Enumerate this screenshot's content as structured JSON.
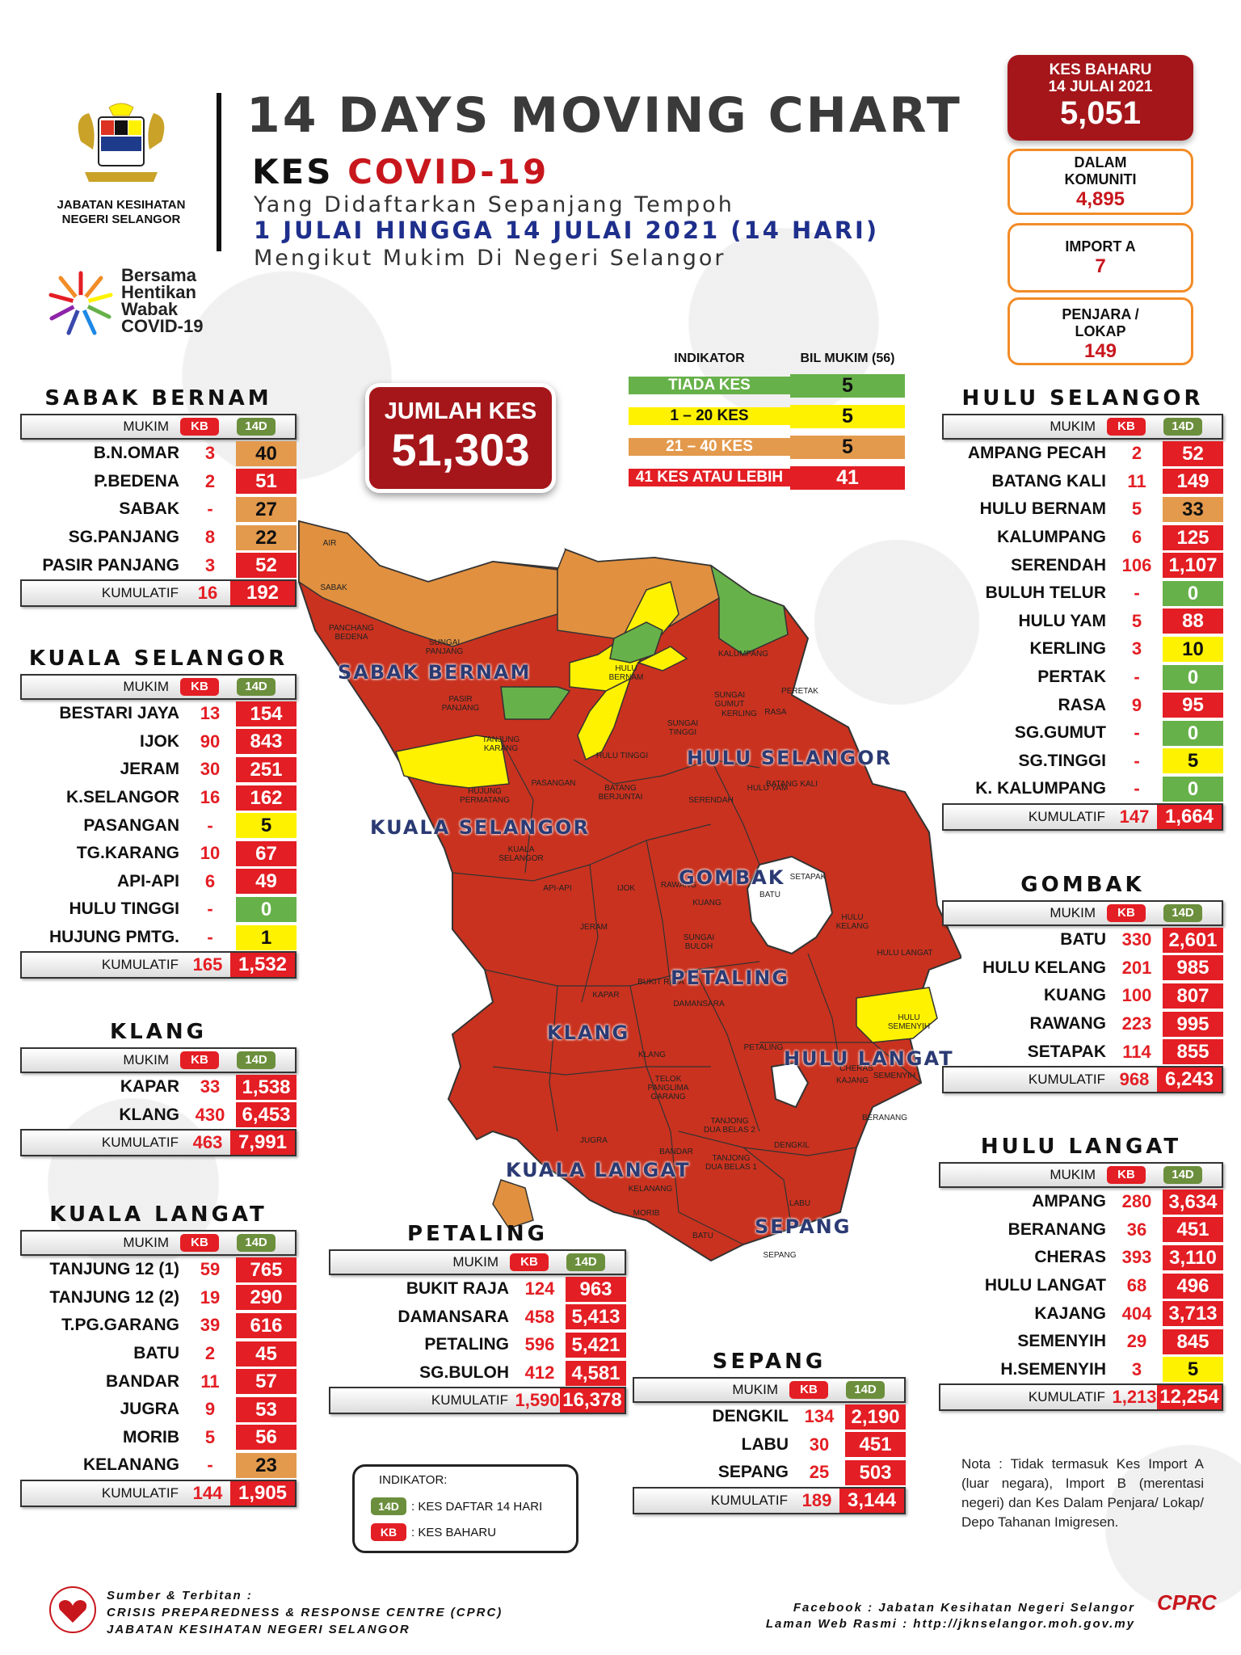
{
  "header": {
    "title": "14 DAYS MOVING CHART",
    "kes": "KES ",
    "covid": "COVID-19",
    "line1": "Yang Didaftarkan Sepanjang Tempoh",
    "line2": "1 JULAI HINGGA 14 JULAI 2021 (14 HARI)",
    "line3": "Mengikut Mukim Di Negeri Selangor",
    "org": "JABATAN KESIHATAN NEGERI SELANGOR",
    "campaign": "Bersama Hentikan Wabak COVID-19"
  },
  "kes_baharu": {
    "label": "KES BAHARU",
    "date": "14 JULAI 2021",
    "value": "5,051"
  },
  "stats": [
    {
      "label": "DALAM KOMUNITI",
      "value": "4,895"
    },
    {
      "label": "IMPORT A",
      "value": "7"
    },
    {
      "label": "PENJARA / LOKAP",
      "value": "149"
    }
  ],
  "jumlah": {
    "label": "JUMLAH KES",
    "value": "51,303"
  },
  "indicator": {
    "h1": "INDIKATOR",
    "h2": "BIL MUKIM (56)",
    "rows": [
      {
        "label": "TIADA KES",
        "count": "5",
        "color": "#67b14a"
      },
      {
        "label": "1 – 20 KES",
        "count": "5",
        "color": "#fff200"
      },
      {
        "label": "21 – 40 KES",
        "count": "5",
        "color": "#e39a4d"
      },
      {
        "label": "41 KES ATAU LEBIH",
        "count": "41",
        "color": "#e31e24"
      }
    ]
  },
  "col": {
    "mukim": "MUKIM",
    "kb": "KB",
    "d14": "14D",
    "kumulatif": "KUMULATIF"
  },
  "tables": {
    "sabak": {
      "name": "SABAK BERNAM",
      "rows": [
        [
          "B.N.OMAR",
          "3",
          "40",
          "org2"
        ],
        [
          "P.BEDENA",
          "2",
          "51",
          "red"
        ],
        [
          "SABAK",
          "-",
          "27",
          "org2"
        ],
        [
          "SG.PANJANG",
          "8",
          "22",
          "org2"
        ],
        [
          "PASIR PANJANG",
          "3",
          "52",
          "red"
        ]
      ],
      "kb": "16",
      "d14": "192"
    },
    "kualasel": {
      "name": "KUALA SELANGOR",
      "rows": [
        [
          "BESTARI JAYA",
          "13",
          "154",
          "red"
        ],
        [
          "IJOK",
          "90",
          "843",
          "red"
        ],
        [
          "JERAM",
          "30",
          "251",
          "red"
        ],
        [
          "K.SELANGOR",
          "16",
          "162",
          "red"
        ],
        [
          "PASANGAN",
          "-",
          "5",
          "yel"
        ],
        [
          "TG.KARANG",
          "10",
          "67",
          "red"
        ],
        [
          "API-API",
          "6",
          "49",
          "red"
        ],
        [
          "HULU TINGGI",
          "-",
          "0",
          "grn"
        ],
        [
          "HUJUNG PMTG.",
          "-",
          "1",
          "yel"
        ]
      ],
      "kb": "165",
      "d14": "1,532"
    },
    "klang": {
      "name": "KLANG",
      "rows": [
        [
          "KAPAR",
          "33",
          "1,538",
          "red"
        ],
        [
          "KLANG",
          "430",
          "6,453",
          "red"
        ]
      ],
      "kb": "463",
      "d14": "7,991"
    },
    "kualalangat": {
      "name": "KUALA LANGAT",
      "rows": [
        [
          "TANJUNG 12 (1)",
          "59",
          "765",
          "red"
        ],
        [
          "TANJUNG 12 (2)",
          "19",
          "290",
          "red"
        ],
        [
          "T.PG.GARANG",
          "39",
          "616",
          "red"
        ],
        [
          "BATU",
          "2",
          "45",
          "red"
        ],
        [
          "BANDAR",
          "11",
          "57",
          "red"
        ],
        [
          "JUGRA",
          "9",
          "53",
          "red"
        ],
        [
          "MORIB",
          "5",
          "56",
          "red"
        ],
        [
          "KELANANG",
          "-",
          "23",
          "org2"
        ]
      ],
      "kb": "144",
      "d14": "1,905"
    },
    "petaling": {
      "name": "PETALING",
      "rows": [
        [
          "BUKIT RAJA",
          "124",
          "963",
          "red"
        ],
        [
          "DAMANSARA",
          "458",
          "5,413",
          "red"
        ],
        [
          "PETALING",
          "596",
          "5,421",
          "red"
        ],
        [
          "SG.BULOH",
          "412",
          "4,581",
          "red"
        ]
      ],
      "kb": "1,590",
      "d14": "16,378"
    },
    "sepang": {
      "name": "SEPANG",
      "rows": [
        [
          "DENGKIL",
          "134",
          "2,190",
          "red"
        ],
        [
          "LABU",
          "30",
          "451",
          "red"
        ],
        [
          "SEPANG",
          "25",
          "503",
          "red"
        ]
      ],
      "kb": "189",
      "d14": "3,144"
    },
    "hulusel": {
      "name": "HULU SELANGOR",
      "rows": [
        [
          "AMPANG PECAH",
          "2",
          "52",
          "red"
        ],
        [
          "BATANG KALI",
          "11",
          "149",
          "red"
        ],
        [
          "HULU BERNAM",
          "5",
          "33",
          "org2"
        ],
        [
          "KALUMPANG",
          "6",
          "125",
          "red"
        ],
        [
          "SERENDAH",
          "106",
          "1,107",
          "red"
        ],
        [
          "BULUH TELUR",
          "-",
          "0",
          "grn"
        ],
        [
          "HULU YAM",
          "5",
          "88",
          "red"
        ],
        [
          "KERLING",
          "3",
          "10",
          "yel"
        ],
        [
          "PERTAK",
          "-",
          "0",
          "grn"
        ],
        [
          "RASA",
          "9",
          "95",
          "red"
        ],
        [
          "SG.GUMUT",
          "-",
          "0",
          "grn"
        ],
        [
          "SG.TINGGI",
          "-",
          "5",
          "yel"
        ],
        [
          "K. KALUMPANG",
          "-",
          "0",
          "grn"
        ]
      ],
      "kb": "147",
      "d14": "1,664"
    },
    "gombak": {
      "name": "GOMBAK",
      "rows": [
        [
          "BATU",
          "330",
          "2,601",
          "red"
        ],
        [
          "HULU KELANG",
          "201",
          "985",
          "red"
        ],
        [
          "KUANG",
          "100",
          "807",
          "red"
        ],
        [
          "RAWANG",
          "223",
          "995",
          "red"
        ],
        [
          "SETAPAK",
          "114",
          "855",
          "red"
        ]
      ],
      "kb": "968",
      "d14": "6,243"
    },
    "hululangat": {
      "name": "HULU LANGAT",
      "rows": [
        [
          "AMPANG",
          "280",
          "3,634",
          "red"
        ],
        [
          "BERANANG",
          "36",
          "451",
          "red"
        ],
        [
          "CHERAS",
          "393",
          "3,110",
          "red"
        ],
        [
          "HULU LANGAT",
          "68",
          "496",
          "red"
        ],
        [
          "KAJANG",
          "404",
          "3,713",
          "red"
        ],
        [
          "SEMENYIH",
          "29",
          "845",
          "red"
        ],
        [
          "H.SEMENYIH",
          "3",
          "5",
          "yel"
        ]
      ],
      "kb": "1,213",
      "d14": "12,254"
    }
  },
  "map_labels": {
    "sabak": "SABAK BERNAM",
    "hulusel": "HULU SELANGOR",
    "kualasel": "KUALA SELANGOR",
    "gombak": "GOMBAK",
    "petaling": "PETALING",
    "klang": "KLANG",
    "hululangat": "HULU LANGAT",
    "kualalangat": "KUALA LANGAT",
    "sepang": "SEPANG"
  },
  "mukim_labels": [
    "SABAK",
    "PANCHANG BEDENA",
    "SUNGAI PANJANG",
    "PASIR PANJANG",
    "HULU BERNAM",
    "KALUMPANG",
    "SUNGAI GUMUT",
    "PERETAK",
    "KERLING",
    "SUNGAI TINGGI",
    "RASA",
    "TANJUNG KARANG",
    "HULU TINGGI",
    "HUJUNG PERMATANG",
    "PASANGAN",
    "BATANG BERJUNTAI",
    "SERENDAH",
    "HULU YAM",
    "BATANG KALI",
    "KUALA SELANGOR",
    "RAWANG",
    "API-API",
    "IJOK",
    "SETAPAK",
    "KUANG",
    "BATU",
    "HULU KELANG",
    "JERAM",
    "SUNGAI BULOH",
    "HULU LANGAT",
    "KAPAR",
    "BUKIT RAJA",
    "DAMANSARA",
    "HULU SEMENYIH",
    "KLANG",
    "PETALING",
    "CHERAS",
    "KAJANG",
    "SEMENYIH",
    "TELOK PANGLIMA GARANG",
    "TANJONG DUA BELAS 2",
    "BERANANG",
    "JUGRA",
    "BANDAR",
    "TANJONG DUA BELAS 1",
    "DENGKIL",
    "KELANANG",
    "LABU",
    "MORIB",
    "BATU",
    "SEPANG",
    "AIR"
  ],
  "legend": {
    "title": "INDIKATOR:",
    "d14_desc": ": KES DAFTAR 14 HARI",
    "kb_desc": ": KES BAHARU"
  },
  "nota": "Nota : Tidak termasuk Kes Import A (luar negara), Import B (merentasi negeri) dan Kes Dalam Penjara/ Lokap/ Depo Tahanan Imigresen.",
  "footer": {
    "s1": "Sumber & Terbitan :",
    "s2": "CRISIS PREPAREDNESS & RESPONSE CENTRE (CPRC)",
    "s3": "JABATAN KESIHATAN NEGERI SELANGOR",
    "f1": "Facebook : Jabatan Kesihatan Negeri Selangor",
    "f2": "Laman Web Rasmi : http://jknselangor.moh.gov.my",
    "cprc": "CPRC"
  }
}
